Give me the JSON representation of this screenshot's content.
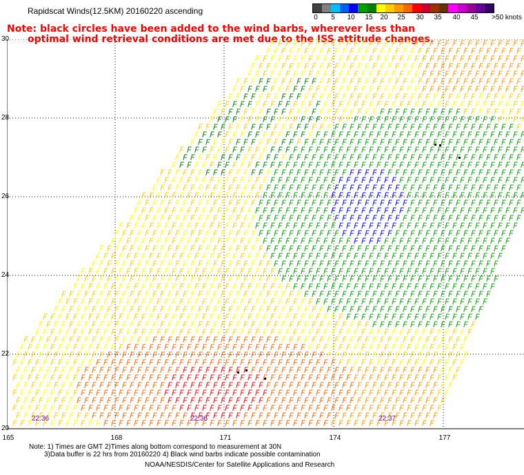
{
  "title": "Rapidscat Winds(12.5KM) 20160220 ascending",
  "note": {
    "line1": "Note: black circles have been added to the wind barbs, wherever less than",
    "line2": "optimal wind retrieval conditions are met due to the ISS attitude changes."
  },
  "colorbar": {
    "labels": [
      "0",
      "5",
      "10",
      "15",
      "20",
      "25",
      "30",
      "35",
      "40",
      "45",
      ">50 knots"
    ],
    "colors": [
      "#404040",
      "#808080",
      "#00c0ff",
      "#0060ff",
      "#0000ff",
      "#00a000",
      "#008000",
      "#ffff00",
      "#ffcc00",
      "#ff9900",
      "#ff6600",
      "#ff0000",
      "#cc0033",
      "#993300",
      "#663300",
      "#ff00ff",
      "#cc00cc",
      "#990099",
      "#660099",
      "#330066"
    ]
  },
  "axes": {
    "y_labels": [
      "30",
      "28",
      "26",
      "24",
      "22",
      "20"
    ],
    "x_labels": [
      "165",
      "168",
      "171",
      "174",
      "177"
    ]
  },
  "time_labels": [
    "22:36",
    "22:36",
    "22:37"
  ],
  "footer": {
    "line1": "Note: 1) Times are GMT 2)Times along bottom correspond to measurement at 30N",
    "line2": "3)Data buffer is 22 hrs from 20160220 4) Black wind barbs indicate possible contamination",
    "line3": "NOAA/NESDIS/Center for Satellite Applications and Research"
  }
}
